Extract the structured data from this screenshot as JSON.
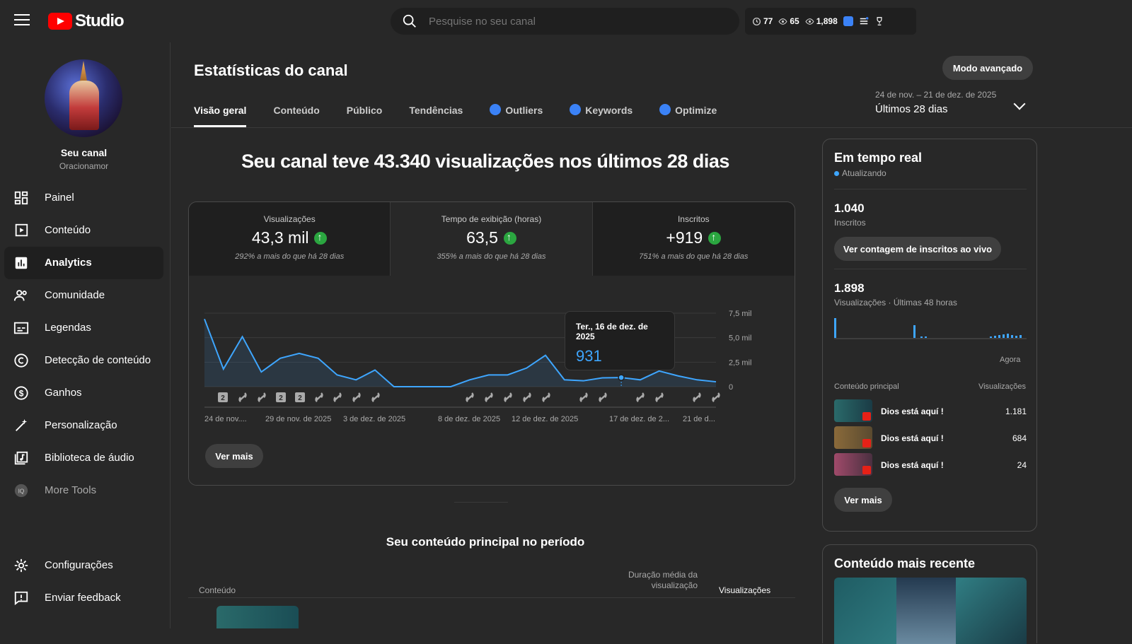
{
  "app": {
    "logo_text": "Studio"
  },
  "search": {
    "placeholder": "Pesquise no seu canal"
  },
  "top_stats": [
    {
      "icon": "clock-icon",
      "value": "77"
    },
    {
      "icon": "eye-icon",
      "value": "65"
    },
    {
      "icon": "eye-icon",
      "value": "1,898"
    }
  ],
  "sidebar": {
    "channel_name": "Seu canal",
    "channel_handle": "Oracionamor",
    "items": [
      {
        "label": "Painel",
        "icon": "dashboard-icon"
      },
      {
        "label": "Conteúdo",
        "icon": "content-icon"
      },
      {
        "label": "Analytics",
        "icon": "analytics-icon",
        "active": true
      },
      {
        "label": "Comunidade",
        "icon": "community-icon"
      },
      {
        "label": "Legendas",
        "icon": "subtitles-icon"
      },
      {
        "label": "Detecção de conteúdo",
        "icon": "copyright-icon"
      },
      {
        "label": "Ganhos",
        "icon": "dollar-icon"
      },
      {
        "label": "Personalização",
        "icon": "magic-wand-icon"
      },
      {
        "label": "Biblioteca de áudio",
        "icon": "audio-library-icon"
      },
      {
        "label": "More Tools",
        "icon": "vidiq-icon"
      }
    ],
    "bottom_items": [
      {
        "label": "Configurações",
        "icon": "gear-icon"
      },
      {
        "label": "Enviar feedback",
        "icon": "feedback-icon"
      }
    ]
  },
  "main": {
    "title": "Estatísticas do canal",
    "advanced_button": "Modo avançado",
    "tabs": [
      {
        "label": "Visão geral",
        "active": true
      },
      {
        "label": "Conteúdo"
      },
      {
        "label": "Público"
      },
      {
        "label": "Tendências"
      },
      {
        "label": "Outliers",
        "icon": "vidiq-icon"
      },
      {
        "label": "Keywords",
        "icon": "vidiq-icon"
      },
      {
        "label": "Optimize",
        "icon": "vidiq-icon"
      }
    ],
    "date_range": "24 de nov. – 21 de dez. de 2025",
    "date_preset": "Últimos 28 dias",
    "headline": "Seu canal teve 43.340 visualizações nos últimos 28 dias",
    "metrics": [
      {
        "label": "Visualizações",
        "value": "43,3 mil",
        "compare": "292% a mais do que há 28 dias"
      },
      {
        "label": "Tempo de exibição (horas)",
        "value": "63,5",
        "compare": "355% a mais do que há 28 dias"
      },
      {
        "label": "Inscritos",
        "value": "+919",
        "compare": "751% a mais do que há 28 dias"
      }
    ],
    "tooltip": {
      "date": "Ter., 16 de dez. de 2025",
      "value": "931"
    },
    "ver_mais": "Ver mais",
    "top_content_title": "Seu conteúdo principal no período",
    "table": {
      "col_content": "Conteúdo",
      "col_avg_duration": "Duração média da visualização",
      "col_views": "Visualizações"
    }
  },
  "chart_data": {
    "type": "area",
    "x": [
      "24 de nov.",
      "25 de nov.",
      "26 de nov.",
      "27 de nov.",
      "28 de nov.",
      "29 de nov.",
      "30 de nov.",
      "1 de dez.",
      "2 de dez.",
      "3 de dez.",
      "4 de dez.",
      "5 de dez.",
      "6 de dez.",
      "7 de dez.",
      "8 de dez.",
      "9 de dez.",
      "10 de dez.",
      "11 de dez.",
      "12 de dez.",
      "13 de dez.",
      "14 de dez.",
      "15 de dez.",
      "16 de dez.",
      "17 de dez.",
      "18 de dez.",
      "19 de dez.",
      "20 de dez.",
      "21 de dez."
    ],
    "series": [
      {
        "values": [
          6900,
          1800,
          5100,
          1500,
          2900,
          3400,
          2900,
          1200,
          700,
          1700,
          0,
          0,
          0,
          0,
          700,
          1200,
          1200,
          1900,
          3200,
          700,
          600,
          900,
          931,
          700,
          1600,
          1100,
          700,
          500
        ]
      }
    ],
    "x_tick_labels": [
      "24 de nov....",
      "29 de nov. de 2025",
      "3 de dez. de 2025",
      "8 de dez. de 2025",
      "12 de dez. de 2025",
      "17 de dez. de 2...",
      "21 de d..."
    ],
    "y_tick_labels": [
      "7,5 mil",
      "5,0 mil",
      "2,5 mil",
      "0"
    ],
    "ylim": [
      0,
      7500
    ],
    "marker_badges": [
      "2",
      "",
      "",
      "2",
      "2",
      "",
      "",
      "",
      "",
      "",
      "",
      "",
      "",
      "",
      "",
      "",
      "",
      "",
      "",
      ""
    ]
  },
  "realtime": {
    "title": "Em tempo real",
    "status": "Atualizando",
    "subs_value": "1.040",
    "subs_label": "Inscritos",
    "live_button": "Ver contagem de inscritos ao vivo",
    "views_value": "1.898",
    "views_label": "Visualizações · Últimas 48 horas",
    "now_label": "Agora",
    "col_content": "Conteúdo principal",
    "col_views": "Visualizações",
    "rows": [
      {
        "title": "Dios está aquí !",
        "views": "1.181"
      },
      {
        "title": "Dios está aquí !",
        "views": "684"
      },
      {
        "title": "Dios está aquí !",
        "views": "24"
      }
    ],
    "ver_mais": "Ver mais"
  },
  "recent": {
    "title": "Conteúdo mais recente"
  }
}
